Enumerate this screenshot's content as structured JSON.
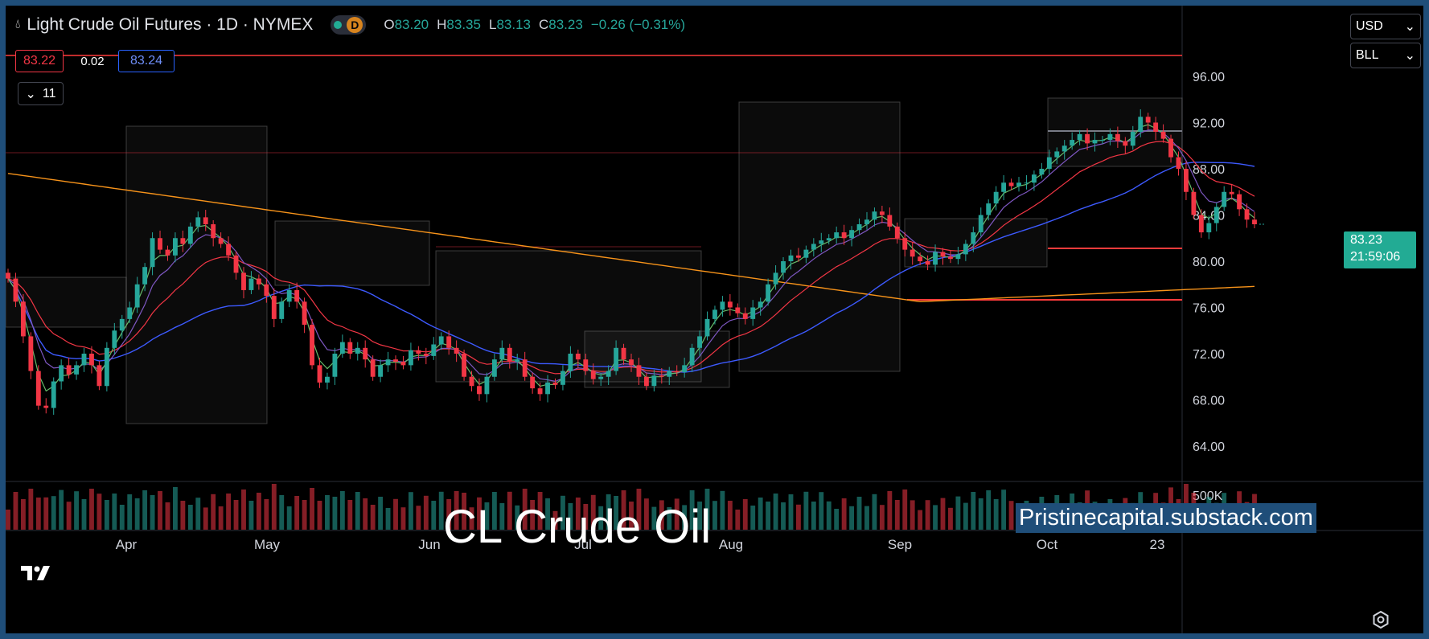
{
  "header": {
    "symbol_title": "Light Crude Oil Futures · 1D · NYMEX",
    "badge_letter": "D",
    "ohlc": [
      {
        "k": "O",
        "v": "83.20"
      },
      {
        "k": "H",
        "v": "83.35"
      },
      {
        "k": "L",
        "v": "83.13"
      },
      {
        "k": "C",
        "v": "83.23"
      }
    ],
    "change": "−0.26 (−0.31%)"
  },
  "trade": {
    "sell": "83.22",
    "spread": "0.02",
    "buy": "83.24"
  },
  "indicators_button": {
    "count": "11"
  },
  "selectors": {
    "currency": "USD",
    "unit": "BLL"
  },
  "last_price": {
    "value": "83.23",
    "countdown": "21:59:06"
  },
  "watermark": "CL Crude Oil",
  "site": "Pristinecapital.substack.com",
  "colors": {
    "up": "#26a69a",
    "down": "#f23645",
    "ema_fast": "#66bb6a",
    "ema_mid": "#7e57c2",
    "ema_slow": "#f23645",
    "sma_long": "#3d5afe",
    "sma_200": "#f7931a",
    "level": "#ff3b3b"
  },
  "chart_data": {
    "type": "candlestick",
    "title": "Light Crude Oil Futures · 1D · NYMEX",
    "ylim": [
      61,
      96.5
    ],
    "y_ticks": [
      "96.00",
      "92.00",
      "88.00",
      "84.00",
      "80.00",
      "76.00",
      "72.00",
      "68.00",
      "64.00"
    ],
    "x_tick_labels": [
      "Apr",
      "May",
      "Jun",
      "Jul",
      "Aug",
      "Sep",
      "Oct",
      "23"
    ],
    "volume_tick": "500K",
    "closes": [
      78.5,
      76.5,
      73.5,
      70.5,
      67.5,
      67.3,
      69.6,
      71,
      70.2,
      71,
      72,
      71,
      69.2,
      72.5,
      74,
      75,
      76,
      78,
      79.5,
      82,
      81,
      80.5,
      82,
      81.5,
      83,
      83.8,
      83.2,
      82,
      81.5,
      80.5,
      79,
      77.5,
      78.5,
      78,
      77,
      75,
      76.5,
      77.5,
      76.5,
      74.5,
      71,
      69.5,
      70,
      72,
      73,
      72,
      72.5,
      71.5,
      70,
      71,
      71.5,
      71.3,
      71,
      72.3,
      72,
      71.8,
      72.8,
      73.5,
      72.5,
      72,
      70,
      69.2,
      68.5,
      70,
      71.5,
      72.5,
      71.3,
      71.5,
      70,
      69,
      68.5,
      69.5,
      69.3,
      70.5,
      72,
      71.5,
      70.5,
      69.8,
      70,
      70.5,
      72.5,
      71.5,
      71,
      70,
      69.2,
      70.1,
      70,
      70.5,
      70.4,
      71,
      72.5,
      73.5,
      75,
      75.8,
      76.5,
      76,
      75.5,
      75,
      76,
      76.5,
      78,
      79,
      80,
      80.5,
      80.3,
      81,
      81.5,
      81.8,
      82,
      82.5,
      82,
      82.7,
      83.2,
      83.6,
      84.3,
      84,
      83,
      82,
      81,
      80.4,
      80,
      79.7,
      80.8,
      80.4,
      80.2,
      80.6,
      81.5,
      82.5,
      84,
      85,
      86,
      86.8,
      86.5,
      86.8,
      86.8,
      87.5,
      88,
      89,
      89.5,
      90,
      90.5,
      91,
      90.2,
      90.5,
      90.5,
      91,
      90.4,
      90,
      91.2,
      92.5,
      92,
      91.2,
      90.6,
      89,
      88,
      86,
      84,
      82.5,
      83.3,
      84.7,
      86,
      85.8,
      84.5,
      83.6,
      83.2
    ]
  }
}
